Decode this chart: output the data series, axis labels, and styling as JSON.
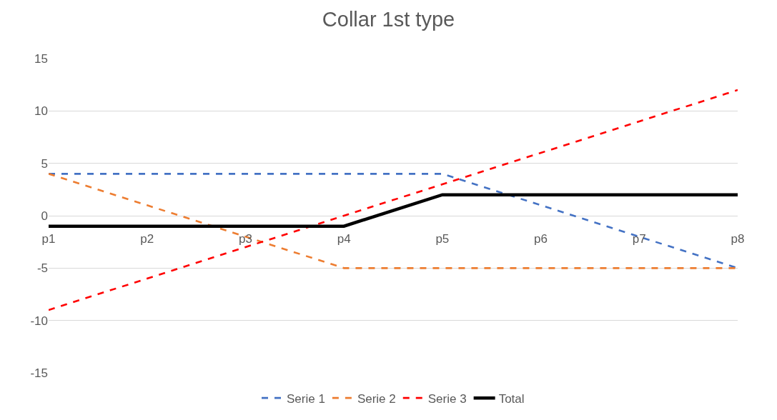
{
  "chart_data": {
    "type": "line",
    "title": "Collar 1st type",
    "categories": [
      "p1",
      "p2",
      "p3",
      "p4",
      "p5",
      "p6",
      "p7",
      "p8"
    ],
    "series": [
      {
        "name": "Serie 1",
        "color": "#4472c4",
        "line_style": "dashed",
        "values": [
          4,
          4,
          4,
          4,
          4,
          1,
          -2,
          -5
        ]
      },
      {
        "name": "Serie 2",
        "color": "#ed7d31",
        "line_style": "dashed",
        "values": [
          4,
          1,
          -2,
          -5,
          -5,
          -5,
          -5,
          -5
        ]
      },
      {
        "name": "Serie 3",
        "color": "#ff0000",
        "line_style": "dashed",
        "values": [
          -9,
          -6,
          -3,
          0,
          3,
          6,
          9,
          12
        ]
      },
      {
        "name": "Total",
        "color": "#000000",
        "line_style": "solid",
        "values": [
          -1,
          -1,
          -1,
          -1,
          2,
          2,
          2,
          2
        ]
      }
    ],
    "ylim": [
      -15,
      15
    ],
    "yticks": [
      -15,
      -10,
      -5,
      0,
      5,
      10,
      15
    ],
    "grid": "y",
    "legend": "bottom",
    "marker": "none"
  }
}
